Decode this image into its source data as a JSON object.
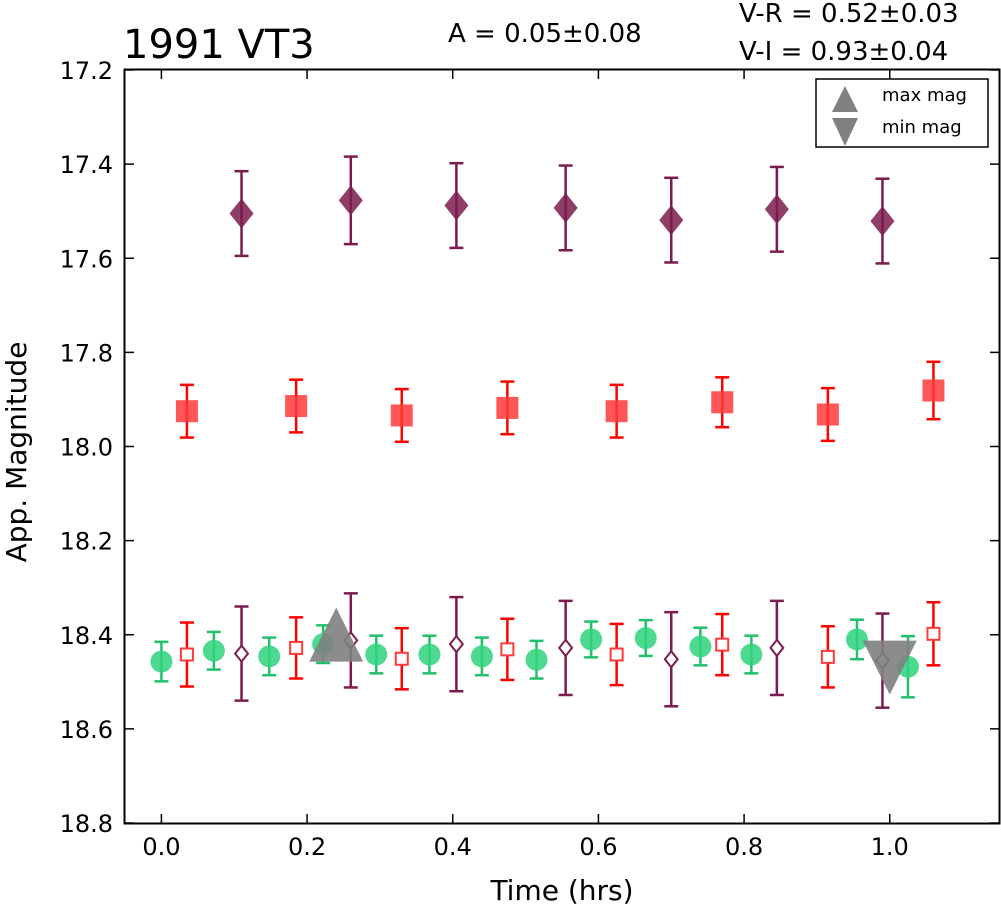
{
  "chart_data": {
    "type": "scatter",
    "title": "1991 VT3",
    "annotations": {
      "amplitude": "A  = 0.05±0.08",
      "v_r": "V-R = 0.52±0.03",
      "v_i": "V-I  = 0.93±0.04"
    },
    "xlabel": "Time (hrs)",
    "ylabel": "App. Magnitude",
    "xlim": [
      -0.05,
      1.15
    ],
    "ylim": [
      18.8,
      17.2
    ],
    "y_inverted": true,
    "xticks": [
      "0.0",
      "0.2",
      "0.4",
      "0.6",
      "0.8",
      "1.0"
    ],
    "yticks": [
      "17.2",
      "17.4",
      "17.6",
      "17.8",
      "18.0",
      "18.2",
      "18.4",
      "18.6",
      "18.8"
    ],
    "grid": false,
    "legend": {
      "position": "top-right",
      "entries": [
        {
          "label": "max mag",
          "marker": "triangle-up",
          "color": "#808080"
        },
        {
          "label": "min mag",
          "marker": "triangle-down",
          "color": "#808080"
        }
      ]
    },
    "series": [
      {
        "marker": "diamond",
        "color": "#7b1b4f",
        "ecolor": "#7b1b4f",
        "filled": true,
        "points": [
          {
            "x": 0.11,
            "y": 17.505,
            "err": 0.09
          },
          {
            "x": 0.26,
            "y": 17.477,
            "err": 0.093
          },
          {
            "x": 0.405,
            "y": 17.488,
            "err": 0.09
          },
          {
            "x": 0.555,
            "y": 17.493,
            "err": 0.09
          },
          {
            "x": 0.7,
            "y": 17.519,
            "err": 0.09
          },
          {
            "x": 0.845,
            "y": 17.496,
            "err": 0.09
          },
          {
            "x": 0.99,
            "y": 17.521,
            "err": 0.09
          }
        ]
      },
      {
        "marker": "square",
        "color": "#ff3a3a",
        "ecolor": "#ff0000",
        "filled": true,
        "points": [
          {
            "x": 0.035,
            "y": 17.925,
            "err": 0.056
          },
          {
            "x": 0.185,
            "y": 17.914,
            "err": 0.056
          },
          {
            "x": 0.33,
            "y": 17.934,
            "err": 0.056
          },
          {
            "x": 0.475,
            "y": 17.918,
            "err": 0.056
          },
          {
            "x": 0.625,
            "y": 17.925,
            "err": 0.056
          },
          {
            "x": 0.77,
            "y": 17.906,
            "err": 0.053
          },
          {
            "x": 0.915,
            "y": 17.932,
            "err": 0.056
          },
          {
            "x": 1.06,
            "y": 17.881,
            "err": 0.061
          }
        ]
      },
      {
        "marker": "circle",
        "color": "#2ed47c",
        "ecolor": "#22c06c",
        "filled": true,
        "points": [
          {
            "x": 0.0,
            "y": 18.457,
            "err": 0.042
          },
          {
            "x": 0.072,
            "y": 18.434,
            "err": 0.04
          },
          {
            "x": 0.148,
            "y": 18.446,
            "err": 0.04
          },
          {
            "x": 0.222,
            "y": 18.42,
            "err": 0.04
          },
          {
            "x": 0.295,
            "y": 18.442,
            "err": 0.04
          },
          {
            "x": 0.368,
            "y": 18.442,
            "err": 0.04
          },
          {
            "x": 0.44,
            "y": 18.446,
            "err": 0.04
          },
          {
            "x": 0.515,
            "y": 18.453,
            "err": 0.04
          },
          {
            "x": 0.59,
            "y": 18.41,
            "err": 0.038
          },
          {
            "x": 0.665,
            "y": 18.407,
            "err": 0.038
          },
          {
            "x": 0.74,
            "y": 18.425,
            "err": 0.04
          },
          {
            "x": 0.81,
            "y": 18.442,
            "err": 0.04
          },
          {
            "x": 0.955,
            "y": 18.41,
            "err": 0.042
          },
          {
            "x": 1.025,
            "y": 18.468,
            "err": 0.065
          }
        ]
      },
      {
        "marker": "square",
        "color": "#ff3a3a",
        "ecolor": "#ff0000",
        "filled": false,
        "points": [
          {
            "x": 0.035,
            "y": 18.442,
            "err": 0.068
          },
          {
            "x": 0.185,
            "y": 18.428,
            "err": 0.065
          },
          {
            "x": 0.33,
            "y": 18.451,
            "err": 0.065
          },
          {
            "x": 0.475,
            "y": 18.431,
            "err": 0.065
          },
          {
            "x": 0.625,
            "y": 18.442,
            "err": 0.065
          },
          {
            "x": 0.77,
            "y": 18.421,
            "err": 0.065
          },
          {
            "x": 0.915,
            "y": 18.447,
            "err": 0.065
          },
          {
            "x": 1.06,
            "y": 18.398,
            "err": 0.067
          }
        ]
      },
      {
        "marker": "diamond",
        "color": "#7b1b4f",
        "ecolor": "#7b1b4f",
        "filled": false,
        "points": [
          {
            "x": 0.11,
            "y": 18.44,
            "err": 0.1
          },
          {
            "x": 0.26,
            "y": 18.412,
            "err": 0.1
          },
          {
            "x": 0.405,
            "y": 18.42,
            "err": 0.1
          },
          {
            "x": 0.555,
            "y": 18.428,
            "err": 0.1
          },
          {
            "x": 0.7,
            "y": 18.452,
            "err": 0.1
          },
          {
            "x": 0.845,
            "y": 18.428,
            "err": 0.1
          },
          {
            "x": 0.99,
            "y": 18.455,
            "err": 0.1
          }
        ]
      },
      {
        "marker": "triangle-up",
        "color": "#808080",
        "ecolor": "#808080",
        "filled": true,
        "label": "max mag",
        "points": [
          {
            "x": 0.24,
            "y": 18.44,
            "err": 0
          }
        ]
      },
      {
        "marker": "triangle-down",
        "color": "#808080",
        "ecolor": "#808080",
        "filled": true,
        "label": "min mag",
        "points": [
          {
            "x": 1.0,
            "y": 18.455,
            "err": 0
          }
        ]
      }
    ]
  }
}
